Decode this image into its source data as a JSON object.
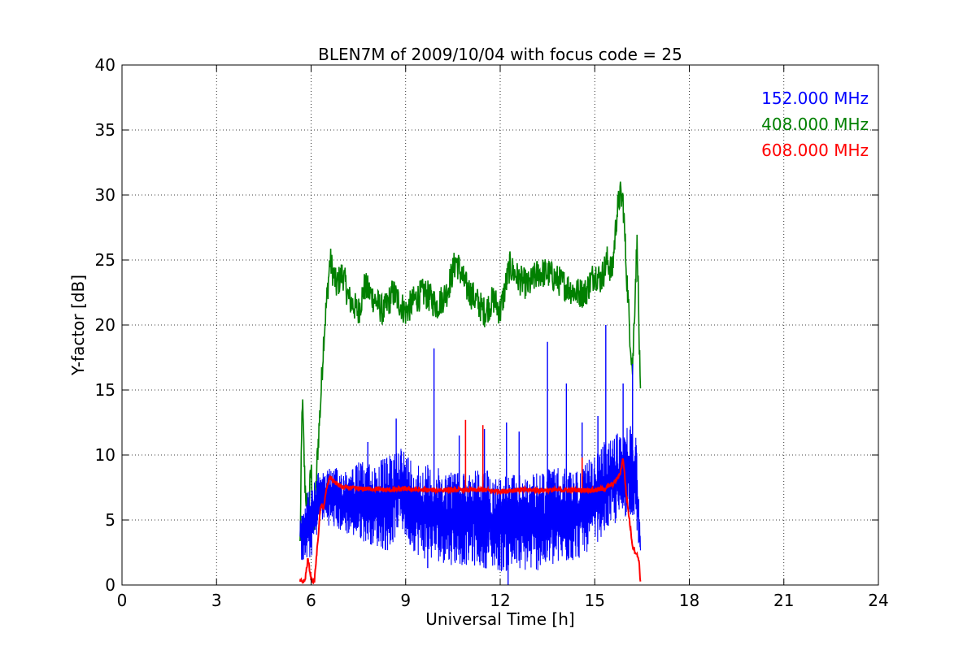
{
  "chart_data": {
    "type": "line",
    "title": "BLEN7M of 2009/10/04 with focus code = 25",
    "xlabel": "Universal Time [h]",
    "ylabel": "Y-factor [dB]",
    "xlim": [
      0,
      24
    ],
    "ylim": [
      0,
      40
    ],
    "xticks": [
      0,
      3,
      6,
      9,
      12,
      15,
      18,
      21,
      24
    ],
    "yticks": [
      0,
      5,
      10,
      15,
      20,
      25,
      30,
      35,
      40
    ],
    "grid": true,
    "legend_position": "top-right",
    "series": [
      {
        "name": "152.000 MHz",
        "color": "#0000ff",
        "style": "noisy-band",
        "envelope": {
          "x": [
            5.65,
            5.8,
            6.0,
            6.3,
            6.6,
            7.0,
            7.5,
            8.0,
            8.5,
            8.8,
            9.1,
            9.5,
            10.0,
            10.5,
            11.0,
            11.5,
            12.0,
            12.5,
            13.0,
            13.5,
            14.0,
            14.5,
            15.0,
            15.3,
            15.6,
            15.9,
            16.1,
            16.3,
            16.45
          ],
          "low": [
            2.0,
            1.5,
            2.0,
            5.0,
            4.5,
            4.0,
            3.5,
            3.0,
            2.5,
            4.5,
            3.0,
            2.0,
            1.8,
            1.5,
            1.5,
            1.3,
            1.0,
            1.0,
            1.0,
            1.2,
            1.5,
            2.0,
            3.0,
            4.0,
            4.5,
            5.0,
            5.5,
            5.0,
            1.5
          ],
          "high": [
            6.0,
            7.0,
            7.5,
            9.0,
            9.0,
            9.0,
            9.5,
            9.5,
            10.0,
            11.0,
            10.0,
            9.5,
            9.0,
            9.0,
            9.0,
            9.0,
            8.5,
            8.5,
            8.5,
            9.0,
            9.0,
            9.0,
            10.0,
            11.0,
            11.5,
            12.0,
            12.5,
            12.0,
            5.0
          ]
        },
        "spikes": [
          {
            "x": 9.9,
            "y": 18.2
          },
          {
            "x": 13.5,
            "y": 18.7
          },
          {
            "x": 15.35,
            "y": 20.0
          },
          {
            "x": 14.1,
            "y": 15.5
          },
          {
            "x": 8.7,
            "y": 12.8
          },
          {
            "x": 11.5,
            "y": 12.0
          },
          {
            "x": 12.2,
            "y": 12.5
          },
          {
            "x": 15.1,
            "y": 13.0
          },
          {
            "x": 15.9,
            "y": 15.5
          },
          {
            "x": 16.2,
            "y": 17.0
          },
          {
            "x": 7.8,
            "y": 11.0
          },
          {
            "x": 10.7,
            "y": 11.5
          },
          {
            "x": 12.6,
            "y": 11.8
          },
          {
            "x": 14.6,
            "y": 12.5
          },
          {
            "x": 12.25,
            "y": 0.0
          },
          {
            "x": 9.7,
            "y": 1.3
          }
        ]
      },
      {
        "name": "408.000 MHz",
        "color": "#008000",
        "style": "noisy-line",
        "points": {
          "x": [
            5.65,
            5.72,
            5.8,
            5.9,
            6.0,
            6.1,
            6.2,
            6.3,
            6.4,
            6.5,
            6.6,
            6.8,
            7.0,
            7.2,
            7.5,
            7.7,
            8.0,
            8.3,
            8.6,
            9.0,
            9.3,
            9.6,
            10.0,
            10.3,
            10.6,
            10.9,
            11.2,
            11.5,
            11.8,
            12.0,
            12.3,
            12.6,
            12.9,
            13.2,
            13.5,
            13.8,
            14.1,
            14.4,
            14.7,
            15.0,
            15.2,
            15.4,
            15.55,
            15.7,
            15.8,
            15.9,
            16.0,
            16.1,
            16.2,
            16.3,
            16.35,
            16.4,
            16.45
          ],
          "y": [
            3.0,
            14.5,
            8.0,
            5.0,
            9.0,
            4.0,
            10.0,
            14.0,
            19.0,
            22.0,
            25.0,
            23.0,
            24.0,
            22.0,
            21.0,
            23.0,
            22.0,
            21.0,
            22.5,
            21.0,
            22.0,
            22.5,
            21.5,
            22.5,
            25.0,
            23.0,
            22.0,
            21.0,
            22.0,
            21.0,
            24.5,
            23.5,
            23.0,
            24.0,
            24.0,
            23.5,
            23.0,
            22.5,
            22.5,
            24.0,
            23.5,
            25.0,
            24.0,
            28.5,
            30.0,
            29.5,
            24.5,
            20.0,
            16.5,
            24.0,
            26.5,
            20.0,
            14.0
          ]
        }
      },
      {
        "name": "608.000 MHz",
        "color": "#ff0000",
        "style": "noisy-line",
        "points": {
          "x": [
            5.65,
            5.8,
            5.9,
            6.0,
            6.1,
            6.2,
            6.3,
            6.4,
            6.5,
            6.6,
            6.8,
            7.0,
            7.5,
            8.0,
            8.5,
            9.0,
            9.5,
            10.0,
            10.5,
            11.0,
            11.5,
            12.0,
            12.5,
            13.0,
            13.5,
            14.0,
            14.5,
            15.0,
            15.3,
            15.6,
            15.8,
            15.9,
            16.0,
            16.1,
            16.2,
            16.3,
            16.4,
            16.45
          ],
          "y": [
            0.3,
            0.3,
            2.0,
            0.5,
            0.2,
            3.0,
            6.0,
            6.0,
            7.5,
            8.3,
            7.8,
            7.5,
            7.4,
            7.4,
            7.3,
            7.4,
            7.3,
            7.3,
            7.3,
            7.3,
            7.3,
            7.2,
            7.3,
            7.3,
            7.3,
            7.3,
            7.3,
            7.3,
            7.4,
            7.8,
            8.5,
            9.8,
            7.0,
            5.0,
            3.0,
            2.5,
            2.0,
            0.2
          ]
        },
        "spikes": [
          {
            "x": 10.9,
            "y": 12.7
          },
          {
            "x": 11.45,
            "y": 12.3
          },
          {
            "x": 14.6,
            "y": 9.8
          }
        ]
      }
    ]
  }
}
